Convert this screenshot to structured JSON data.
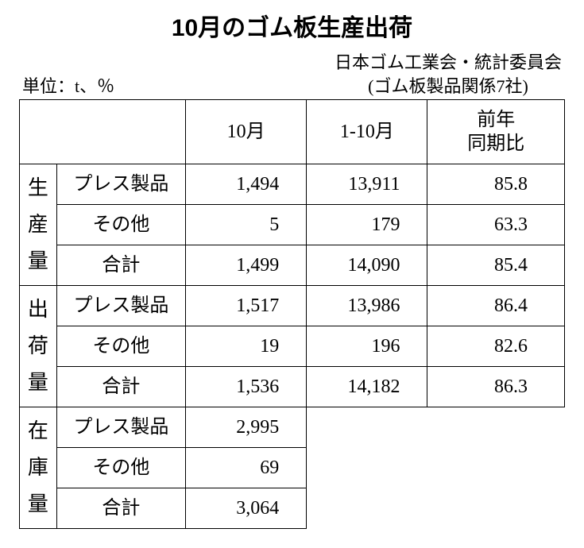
{
  "title": "10月のゴム板生産出荷",
  "unit_label": "単位：t、％",
  "source_line1": "日本ゴム工業会・統計委員会",
  "source_line2": "(ゴム板製品関係7社)",
  "columns": {
    "c1": "",
    "c2": "",
    "c3": "10月",
    "c4": "1-10月",
    "c5_l1": "前年",
    "c5_l2": "同期比"
  },
  "groups": [
    {
      "label_chars": [
        "生",
        "産",
        "量"
      ],
      "rows": [
        {
          "name": "プレス製品",
          "c3": "1,494",
          "c4": "13,911",
          "c5": "85.8"
        },
        {
          "name": "その他",
          "c3": "5",
          "c4": "179",
          "c5": "63.3"
        },
        {
          "name": "合計",
          "c3": "1,499",
          "c4": "14,090",
          "c5": "85.4"
        }
      ]
    },
    {
      "label_chars": [
        "出",
        "荷",
        "量"
      ],
      "rows": [
        {
          "name": "プレス製品",
          "c3": "1,517",
          "c4": "13,986",
          "c5": "86.4"
        },
        {
          "name": "その他",
          "c3": "19",
          "c4": "196",
          "c5": "82.6"
        },
        {
          "name": "合計",
          "c3": "1,536",
          "c4": "14,182",
          "c5": "86.3"
        }
      ]
    },
    {
      "label_chars": [
        "在",
        "庫",
        "量"
      ],
      "rows": [
        {
          "name": "プレス製品",
          "c3": "2,995"
        },
        {
          "name": "その他",
          "c3": "69"
        },
        {
          "name": "合計",
          "c3": "3,064"
        }
      ]
    }
  ]
}
